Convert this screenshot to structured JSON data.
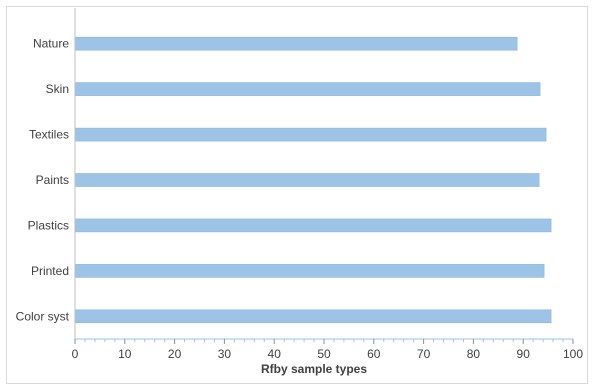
{
  "chart_data": {
    "type": "bar",
    "orientation": "horizontal",
    "categories": [
      "Nature",
      "Skin",
      "Textiles",
      "Paints",
      "Plastics",
      "Printed",
      "Color syst"
    ],
    "values": [
      88.8,
      93.4,
      94.6,
      93.2,
      95.6,
      94.2,
      95.6
    ],
    "xlabel": "Rfby sample types",
    "ylabel": "",
    "xlim": [
      0,
      100
    ],
    "x_ticks": [
      0,
      10,
      20,
      30,
      40,
      50,
      60,
      70,
      80,
      90,
      100
    ],
    "minor_ticks_per_major": 5,
    "grid": false,
    "legend": "none",
    "bar_color": "#9dc3e6",
    "bar_edge_color": "#8db4da",
    "axis_color": "#9dc3e6"
  }
}
